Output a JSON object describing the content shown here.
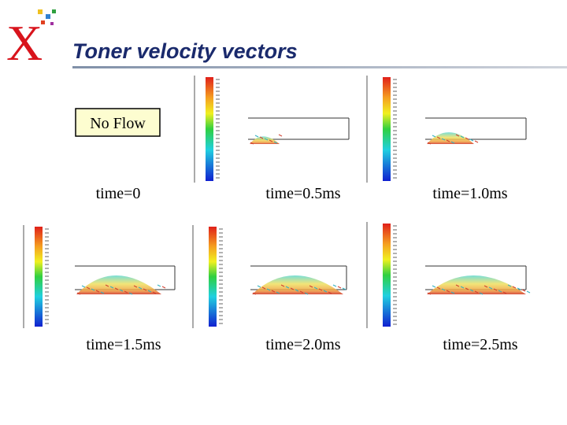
{
  "title": "Toner velocity vectors",
  "label_box": "No Flow",
  "captions": [
    "time=0",
    "time=0.5ms",
    "time=1.0ms",
    "time=1.5ms",
    "time=2.0ms",
    "time=2.5ms"
  ]
}
